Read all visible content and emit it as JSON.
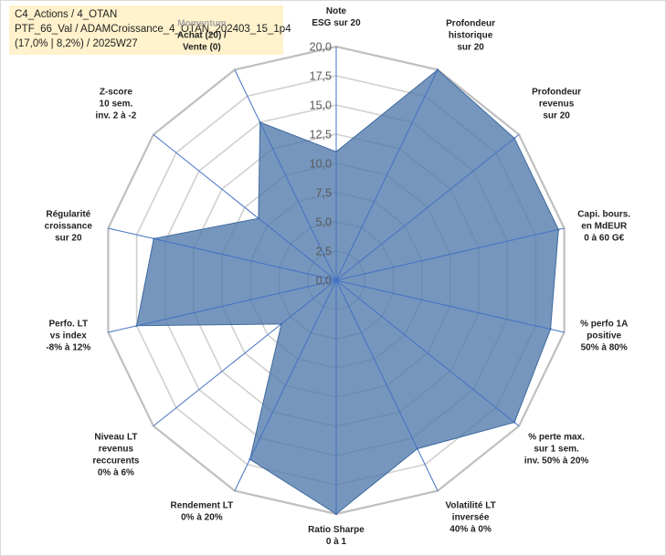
{
  "title_lines": [
    "C4_Actions / 4_OTAN",
    "PTF_66_Val / ADAMCroissance_4_OTAN_202403_15_1p4",
    "(17,0% | 8,2%) / 2025W27"
  ],
  "chart_data": {
    "type": "radar",
    "categories": [
      [
        "Note",
        "ESG sur 20"
      ],
      [
        "Profondeur",
        "historique",
        "sur 20"
      ],
      [
        "Profondeur",
        "revenus",
        "sur 20"
      ],
      [
        "Capi. bours.",
        "en MdEUR",
        "0 à 60 G€"
      ],
      [
        "% perfo 1A",
        "positive",
        "50% à 80%"
      ],
      [
        "% perte max.",
        "sur 1 sem.",
        "inv. 50% à 20%"
      ],
      [
        "Volatilité LT",
        "inversée",
        "40% à 0%"
      ],
      [
        "Ratio Sharpe",
        "0 à 1"
      ],
      [
        "Rendement LT",
        "0% à 20%"
      ],
      [
        "Niveau LT",
        "revenus",
        "reccurents",
        "0% à 6%"
      ],
      [
        "Perfo. LT",
        "vs index",
        "-8% à 12%"
      ],
      [
        "Régularité",
        "croissance",
        "sur 20"
      ],
      [
        "Z-score",
        "10 sem.",
        "inv. 2 à -2"
      ],
      [
        "Achat (20) /",
        "Vente (0)"
      ]
    ],
    "category_header": "Momentum",
    "ticks": [
      "0,0",
      "2,5",
      "5,0",
      "7,5",
      "10,0",
      "12,5",
      "15,0",
      "17,5",
      "20,0"
    ],
    "ylim": [
      0,
      20
    ],
    "series": [
      {
        "values": [
          11,
          20,
          19.5,
          19.5,
          18.8,
          19.5,
          16,
          20,
          17,
          6,
          17.5,
          16,
          8.5,
          15
        ],
        "color": "#4f79ab"
      }
    ],
    "grid": true
  }
}
